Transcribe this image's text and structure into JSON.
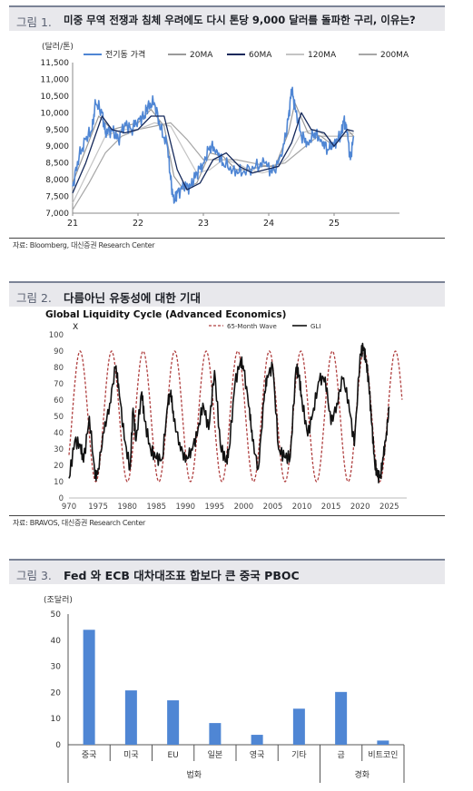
{
  "figures": [
    {
      "number": "그림 1.",
      "title": "미중 무역 전쟁과 침체 우려에도 다시 톤당 9,000 달러를 돌파한 구리, 이유는?",
      "source": "자료: Bloomberg, 대신증권 Research Center"
    },
    {
      "number": "그림 2.",
      "title": "다름아닌 유동성에 대한 기대",
      "source": "자료: BRAVOS, 대신증권 Research Center"
    },
    {
      "number": "그림 3.",
      "title": "Fed 와 ECB 대차대조표 합보다 큰 중국 PBOC",
      "source": ""
    }
  ],
  "chart_data": [
    {
      "type": "line",
      "title": "",
      "ylabel": "(달러/톤)",
      "ylim": [
        7000,
        11500
      ],
      "yticks": [
        "7,000",
        "7,500",
        "8,000",
        "8,500",
        "9,000",
        "9,500",
        "10,000",
        "10,500",
        "11,000",
        "11,500"
      ],
      "xlim": [
        2021,
        2026
      ],
      "xticks": [
        "21",
        "22",
        "23",
        "24",
        "25"
      ],
      "legend_placement": "top",
      "series": [
        {
          "name": "전기동 가격",
          "color": "#4f86d4",
          "x": [
            2021.0,
            2021.1,
            2021.2,
            2021.3,
            2021.35,
            2021.45,
            2021.5,
            2021.6,
            2021.7,
            2021.8,
            2021.9,
            2022.0,
            2022.1,
            2022.15,
            2022.25,
            2022.35,
            2022.45,
            2022.5,
            2022.55,
            2022.6,
            2022.7,
            2022.8,
            2022.9,
            2023.0,
            2023.1,
            2023.2,
            2023.3,
            2023.45,
            2023.6,
            2023.8,
            2023.95,
            2024.05,
            2024.2,
            2024.3,
            2024.35,
            2024.4,
            2024.5,
            2024.6,
            2024.7,
            2024.8,
            2024.9,
            2025.0,
            2025.1,
            2025.15,
            2025.2,
            2025.25,
            2025.3
          ],
          "y": [
            7800,
            8700,
            9200,
            9500,
            10300,
            10000,
            9400,
            9500,
            9200,
            9700,
            9500,
            9800,
            9900,
            10200,
            10300,
            9500,
            9000,
            8000,
            7300,
            7600,
            7800,
            7800,
            8200,
            8500,
            9000,
            8900,
            8500,
            8300,
            8200,
            8400,
            8500,
            8200,
            8700,
            9800,
            10700,
            10200,
            9300,
            9100,
            9400,
            9200,
            8900,
            9100,
            9300,
            9800,
            9400,
            8600,
            9300
          ]
        },
        {
          "name": "20MA",
          "color": "#9a9a9a",
          "x": [
            2021.0,
            2021.2,
            2021.4,
            2021.6,
            2021.8,
            2022.0,
            2022.2,
            2022.4,
            2022.55,
            2022.7,
            2022.9,
            2023.1,
            2023.3,
            2023.5,
            2023.7,
            2023.9,
            2024.1,
            2024.3,
            2024.4,
            2024.6,
            2024.8,
            2025.0,
            2025.2,
            2025.3
          ],
          "y": [
            7900,
            8900,
            9900,
            9500,
            9600,
            9700,
            10100,
            9600,
            8100,
            7700,
            7900,
            8800,
            8700,
            8300,
            8300,
            8400,
            8400,
            9400,
            10300,
            9400,
            9300,
            9000,
            9500,
            9300
          ]
        },
        {
          "name": "60MA",
          "color": "#14285a",
          "x": [
            2021.0,
            2021.2,
            2021.45,
            2021.6,
            2021.8,
            2022.0,
            2022.2,
            2022.4,
            2022.6,
            2022.75,
            2022.95,
            2023.15,
            2023.35,
            2023.55,
            2023.75,
            2023.95,
            2024.15,
            2024.35,
            2024.5,
            2024.65,
            2024.85,
            2025.0,
            2025.2,
            2025.3
          ],
          "y": [
            7600,
            8500,
            9900,
            9500,
            9400,
            9500,
            9900,
            9900,
            8300,
            7700,
            7900,
            8600,
            8800,
            8400,
            8200,
            8300,
            8400,
            9100,
            10000,
            9500,
            9400,
            9000,
            9500,
            9450
          ]
        },
        {
          "name": "120MA",
          "color": "#c4c4c4",
          "x": [
            2021.0,
            2021.25,
            2021.5,
            2021.75,
            2022.0,
            2022.25,
            2022.5,
            2022.7,
            2022.9,
            2023.1,
            2023.3,
            2023.5,
            2023.7,
            2023.9,
            2024.1,
            2024.3,
            2024.5,
            2024.7,
            2024.9,
            2025.1,
            2025.3
          ],
          "y": [
            7300,
            8300,
            9300,
            9500,
            9500,
            9700,
            9600,
            8900,
            8200,
            8300,
            8600,
            8500,
            8300,
            8200,
            8300,
            8700,
            9400,
            9500,
            9300,
            9300,
            9400
          ]
        },
        {
          "name": "200MA",
          "color": "#a6a6a6",
          "x": [
            2021.0,
            2021.25,
            2021.5,
            2021.75,
            2022.0,
            2022.25,
            2022.5,
            2022.75,
            2023.0,
            2023.25,
            2023.5,
            2023.75,
            2024.0,
            2024.25,
            2024.5,
            2024.75,
            2025.0,
            2025.3
          ],
          "y": [
            7100,
            7900,
            8800,
            9300,
            9500,
            9600,
            9700,
            9200,
            8600,
            8600,
            8600,
            8500,
            8400,
            8500,
            8900,
            9300,
            9300,
            9300
          ]
        }
      ]
    },
    {
      "type": "line",
      "title": "Global Liquidity Cycle (Advanced Economics)",
      "xlabel": "",
      "ylabel": "X",
      "ylim": [
        0,
        100
      ],
      "yticks": [
        "0",
        "10",
        "20",
        "30",
        "40",
        "50",
        "60",
        "70",
        "80",
        "90",
        "100"
      ],
      "xlim": [
        1970,
        2028
      ],
      "xticks": [
        "970",
        "1975",
        "1980",
        "1985",
        "1990",
        "1995",
        "2000",
        "2005",
        "2010",
        "2015",
        "2020",
        "2025"
      ],
      "legend_placement": "top-right",
      "series": [
        {
          "name": "65-Month Wave",
          "color": "#b04040",
          "style": "dashed",
          "wave": {
            "center": 50,
            "amplitude": 40,
            "period_years": 5.4167,
            "first_peak_year": 1971.9
          }
        },
        {
          "name": "GLI",
          "color": "#111111",
          "x": [
            1970.0,
            1971.0,
            1972.0,
            1972.5,
            1973.5,
            1974.5,
            1975.0,
            1976.0,
            1977.0,
            1978.0,
            1978.5,
            1979.5,
            1980.5,
            1981.0,
            1981.5,
            1982.5,
            1983.0,
            1984.0,
            1985.0,
            1986.0,
            1987.0,
            1987.5,
            1988.0,
            1989.0,
            1990.0,
            1991.0,
            1992.0,
            1993.0,
            1994.0,
            1995.0,
            1996.0,
            1997.0,
            1997.5,
            1998.5,
            1999.5,
            2000.0,
            2001.0,
            2001.5,
            2002.5,
            2003.5,
            2004.0,
            2005.0,
            2006.0,
            2007.0,
            2008.0,
            2009.0,
            2009.5,
            2010.0,
            2011.0,
            2012.0,
            2013.0,
            2014.0,
            2015.0,
            2016.0,
            2017.0,
            2018.0,
            2019.0,
            2020.0,
            2020.5,
            2021.0,
            2021.5,
            2022.0,
            2022.5,
            2023.0,
            2023.5,
            2024.0,
            2024.5,
            2025.0
          ],
          "y": [
            12,
            35,
            32,
            22,
            50,
            12,
            18,
            40,
            58,
            80,
            70,
            36,
            18,
            55,
            35,
            65,
            47,
            30,
            24,
            24,
            58,
            66,
            47,
            34,
            22,
            30,
            38,
            58,
            42,
            78,
            32,
            22,
            30,
            70,
            85,
            78,
            55,
            35,
            18,
            60,
            75,
            80,
            30,
            25,
            25,
            80,
            75,
            60,
            38,
            55,
            72,
            74,
            45,
            58,
            73,
            60,
            32,
            88,
            92,
            85,
            70,
            45,
            22,
            13,
            14,
            25,
            40,
            55
          ]
        }
      ]
    },
    {
      "type": "bar",
      "title": "",
      "ylabel": "(조달러)",
      "ylim": [
        0,
        50
      ],
      "yticks": [
        "0",
        "10",
        "20",
        "30",
        "40",
        "50"
      ],
      "categories": [
        "중국",
        "미국",
        "EU",
        "일본",
        "영국",
        "기타",
        "금",
        "비트코인"
      ],
      "values": [
        44,
        20.8,
        17,
        8.3,
        3.8,
        13.8,
        20.2,
        1.6
      ],
      "color": "#4f86d4",
      "groups": [
        {
          "label": "법화",
          "from": 0,
          "to": 5
        },
        {
          "label": "경화",
          "from": 6,
          "to": 7
        }
      ]
    }
  ]
}
